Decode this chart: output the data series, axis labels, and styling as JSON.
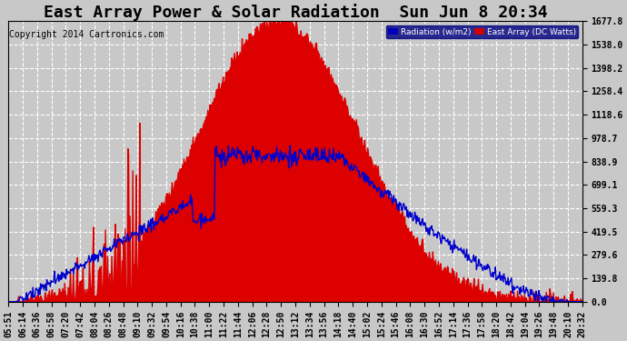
{
  "title": "East Array Power & Solar Radiation  Sun Jun 8 20:34",
  "copyright": "Copyright 2014 Cartronics.com",
  "background_color": "#c8c8c8",
  "plot_background": "#c8c8c8",
  "yticks": [
    0.0,
    139.8,
    279.6,
    419.5,
    559.3,
    699.1,
    838.9,
    978.7,
    1118.6,
    1258.4,
    1398.2,
    1538.0,
    1677.8
  ],
  "ymax": 1677.8,
  "ymin": 0.0,
  "legend_radiation_label": "Radiation (w/m2)",
  "legend_east_label": "East Array (DC Watts)",
  "legend_radiation_color": "#0000bb",
  "legend_east_color": "#cc0000",
  "radiation_line_color": "#0000cc",
  "east_fill_color": "#dd0000",
  "x_tick_labels": [
    "05:51",
    "06:14",
    "06:36",
    "06:58",
    "07:20",
    "07:42",
    "08:04",
    "08:26",
    "08:48",
    "09:10",
    "09:32",
    "09:54",
    "10:16",
    "10:38",
    "11:00",
    "11:22",
    "11:44",
    "12:06",
    "12:28",
    "12:50",
    "13:12",
    "13:34",
    "13:56",
    "14:18",
    "14:40",
    "15:02",
    "15:24",
    "15:46",
    "16:08",
    "16:30",
    "16:52",
    "17:14",
    "17:36",
    "17:58",
    "18:20",
    "18:42",
    "19:04",
    "19:26",
    "19:48",
    "20:10",
    "20:32"
  ],
  "grid_color": "#ffffff",
  "grid_style": "--",
  "title_fontsize": 13,
  "axis_label_fontsize": 7,
  "copyright_fontsize": 7
}
